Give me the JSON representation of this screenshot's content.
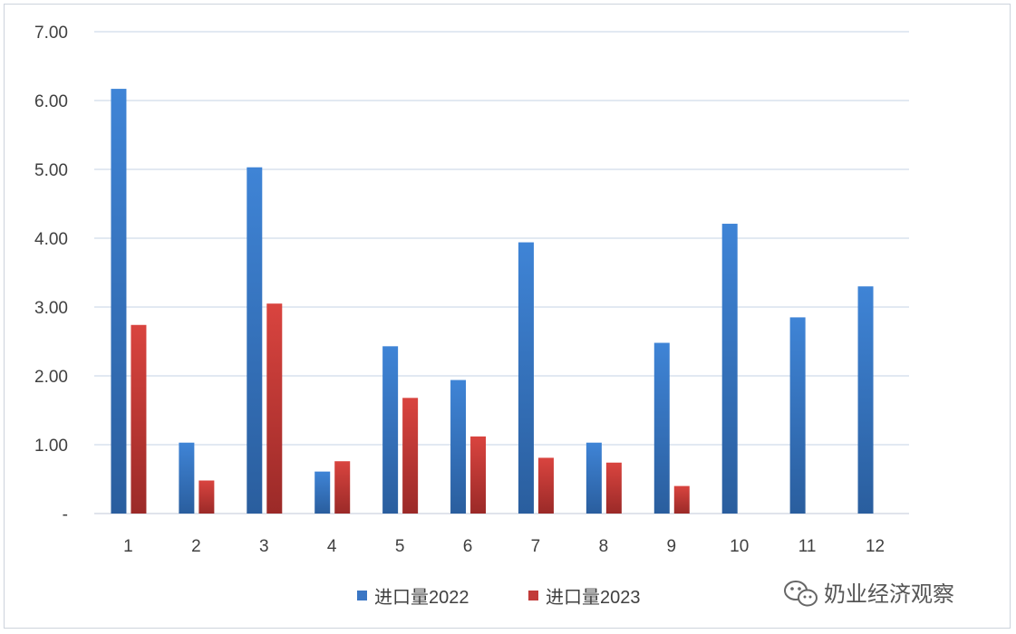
{
  "chart_data": {
    "type": "bar",
    "title": "",
    "xlabel": "",
    "ylabel": "",
    "categories": [
      "1",
      "2",
      "3",
      "4",
      "5",
      "6",
      "7",
      "8",
      "9",
      "10",
      "11",
      "12"
    ],
    "series": [
      {
        "name": "进口量2022",
        "color": "#3a76c4",
        "values": [
          6.17,
          1.03,
          5.03,
          0.61,
          2.43,
          1.94,
          3.94,
          1.03,
          2.48,
          4.21,
          2.85,
          3.3
        ]
      },
      {
        "name": "进口量2023",
        "color": "#c23b39",
        "values": [
          2.74,
          0.48,
          3.05,
          0.76,
          1.68,
          1.12,
          0.81,
          0.74,
          0.4,
          null,
          null,
          null
        ]
      }
    ],
    "ylim": [
      0,
      7
    ],
    "yticks": [
      0,
      1,
      2,
      3,
      4,
      5,
      6,
      7
    ],
    "ytick_labels": [
      "-",
      "1.00",
      "2.00",
      "3.00",
      "4.00",
      "5.00",
      "6.00",
      "7.00"
    ],
    "grid": true,
    "legend_position": "bottom"
  },
  "watermark": {
    "text": "奶业经济观察",
    "icon": "wechat-icon"
  }
}
